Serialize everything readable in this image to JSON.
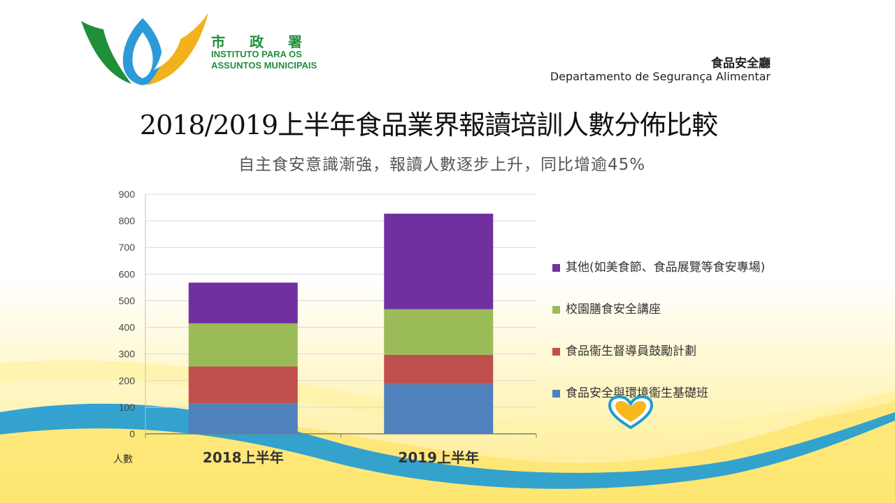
{
  "header": {
    "org_cn": "市 政 署",
    "org_pt_line1": "INSTITUTO PARA OS",
    "org_pt_line2": "ASSUNTOS MUNICIPAIS",
    "dept_cn": "食品安全廳",
    "dept_pt": "Departamento de Segurança Alimentar"
  },
  "slide": {
    "title": "2018/2019上半年食品業界報讀培訓人數分佈比較",
    "subtitle": "自主食安意識漸強，報讀人數逐步上升，同比增逾45%"
  },
  "colors": {
    "blue": "#4f81bd",
    "red": "#c0504d",
    "green": "#9bbb59",
    "purple": "#7030a0",
    "logo_green": "#1f8f3a",
    "logo_yellow": "#f2b21e",
    "logo_blue": "#2d9ad8"
  },
  "chart_data": {
    "type": "bar",
    "stacked": true,
    "categories": [
      "2018上半年",
      "2019上半年"
    ],
    "series": [
      {
        "name": "食品安全與環境衞生基礎班",
        "values": [
          115,
          187
        ],
        "color": "#4f81bd"
      },
      {
        "name": "食品衞生督導員鼓勵計劃",
        "values": [
          138,
          110
        ],
        "color": "#c0504d"
      },
      {
        "name": "校園膳食安全講座",
        "values": [
          162,
          171
        ],
        "color": "#9bbb59"
      },
      {
        "name": "其他(如美食節、食品展覽等食安專場)",
        "values": [
          153,
          359
        ],
        "color": "#7030a0"
      }
    ],
    "ylim": [
      0,
      900
    ],
    "yticks": [
      "0",
      "100",
      "200",
      "300",
      "400",
      "500",
      "600",
      "700",
      "800",
      "900"
    ],
    "ylabel": "人數",
    "grid": true,
    "legend_position": "right"
  }
}
